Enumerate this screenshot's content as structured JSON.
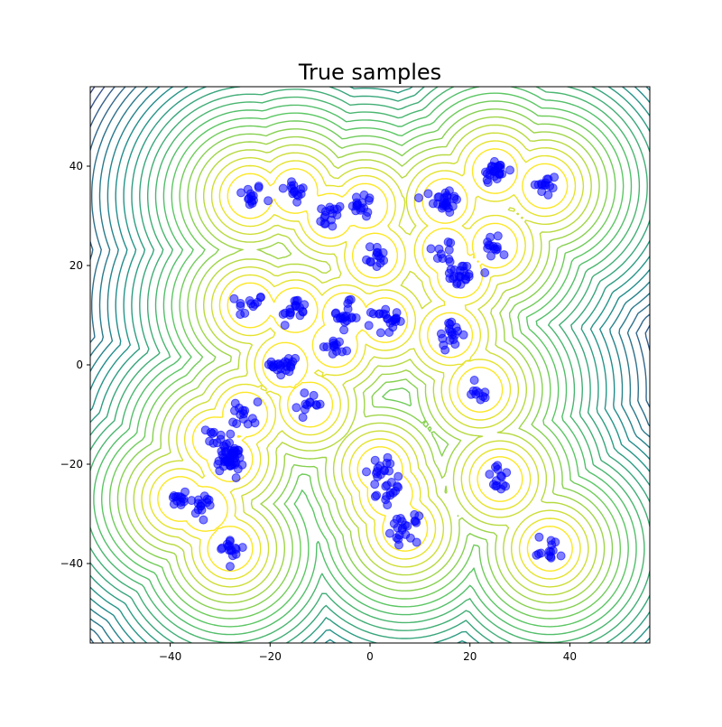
{
  "chart_data": {
    "type": "scatter",
    "title": "True samples",
    "xlabel": "",
    "ylabel": "",
    "xlim": [
      -56,
      56
    ],
    "ylim": [
      -56,
      56
    ],
    "xticks": [
      -40,
      -20,
      0,
      20,
      40
    ],
    "yticks": [
      -40,
      -20,
      0,
      20,
      40
    ],
    "xtick_labels": [
      "−40",
      "−20",
      "0",
      "20",
      "40"
    ],
    "ytick_labels": [
      "−40",
      "−20",
      "0",
      "20",
      "40"
    ],
    "grid": false,
    "background": "contour plot of a density over the sample mixture",
    "colors": {
      "points": "#0000ff",
      "contour_high": "#fde725",
      "contour_mid": "#21918c",
      "contour_low": "#440154"
    },
    "clusters": [
      {
        "x": -24,
        "y": 34,
        "n": 14
      },
      {
        "x": -15,
        "y": 35,
        "n": 14
      },
      {
        "x": -8,
        "y": 30,
        "n": 16
      },
      {
        "x": -1,
        "y": 32,
        "n": 16
      },
      {
        "x": 1,
        "y": 22,
        "n": 14
      },
      {
        "x": 15,
        "y": 33,
        "n": 26
      },
      {
        "x": 25,
        "y": 39,
        "n": 26
      },
      {
        "x": 35,
        "y": 36,
        "n": 14
      },
      {
        "x": 15,
        "y": 23,
        "n": 10
      },
      {
        "x": 18,
        "y": 18,
        "n": 22
      },
      {
        "x": 25,
        "y": 24,
        "n": 14
      },
      {
        "x": -24,
        "y": 12,
        "n": 12
      },
      {
        "x": -15,
        "y": 11,
        "n": 18
      },
      {
        "x": -5,
        "y": 10,
        "n": 18
      },
      {
        "x": 3,
        "y": 9,
        "n": 22
      },
      {
        "x": -7,
        "y": 4,
        "n": 14
      },
      {
        "x": -17,
        "y": 0,
        "n": 24
      },
      {
        "x": 16,
        "y": 6,
        "n": 18
      },
      {
        "x": 22,
        "y": -5,
        "n": 10
      },
      {
        "x": -12,
        "y": -8,
        "n": 12
      },
      {
        "x": -25,
        "y": -10,
        "n": 14
      },
      {
        "x": -31,
        "y": -15,
        "n": 14
      },
      {
        "x": -28,
        "y": -19,
        "n": 44
      },
      {
        "x": 2,
        "y": -21,
        "n": 16
      },
      {
        "x": 4,
        "y": -26,
        "n": 14
      },
      {
        "x": 7,
        "y": -33,
        "n": 22
      },
      {
        "x": 26,
        "y": -23,
        "n": 14
      },
      {
        "x": -38,
        "y": -27,
        "n": 14
      },
      {
        "x": -33,
        "y": -29,
        "n": 14
      },
      {
        "x": -28,
        "y": -37,
        "n": 16
      },
      {
        "x": 36,
        "y": -37,
        "n": 14
      }
    ]
  }
}
